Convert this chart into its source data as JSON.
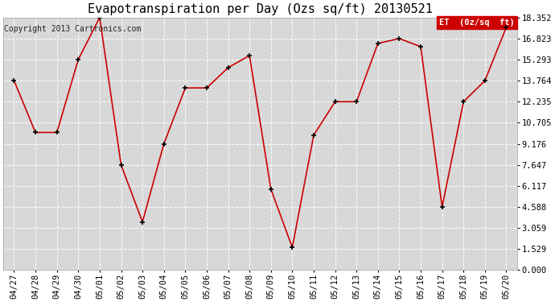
{
  "title": "Evapotranspiration per Day (Ozs sq/ft) 20130521",
  "copyright": "Copyright 2013 Cartronics.com",
  "legend_label": "ET  (0z/sq  ft)",
  "legend_bg": "#cc0000",
  "legend_text_color": "#ffffff",
  "dates": [
    "04/27",
    "04/28",
    "04/29",
    "04/30",
    "05/01",
    "05/02",
    "05/03",
    "05/04",
    "05/05",
    "05/06",
    "05/07",
    "05/08",
    "05/09",
    "05/10",
    "05/11",
    "05/12",
    "05/13",
    "05/14",
    "05/15",
    "05/16",
    "05/17",
    "05/18",
    "05/19",
    "05/20"
  ],
  "values": [
    13.764,
    10.0,
    10.0,
    15.293,
    18.352,
    7.647,
    3.5,
    9.176,
    13.235,
    13.235,
    14.706,
    15.588,
    5.882,
    1.65,
    9.8,
    12.235,
    12.235,
    16.47,
    16.823,
    16.235,
    4.588,
    12.235,
    13.764,
    17.647
  ],
  "yticks": [
    0.0,
    1.529,
    3.059,
    4.588,
    6.117,
    7.647,
    9.176,
    10.705,
    12.235,
    13.764,
    15.293,
    16.823,
    18.352
  ],
  "line_color": "#cc0000",
  "marker_color": "#000000",
  "bg_color": "#ffffff",
  "plot_bg_color": "#d8d8d8",
  "grid_color": "#ffffff",
  "title_fontsize": 11,
  "copyright_fontsize": 7,
  "tick_fontsize": 7.5,
  "ylim": [
    0.0,
    18.352
  ]
}
